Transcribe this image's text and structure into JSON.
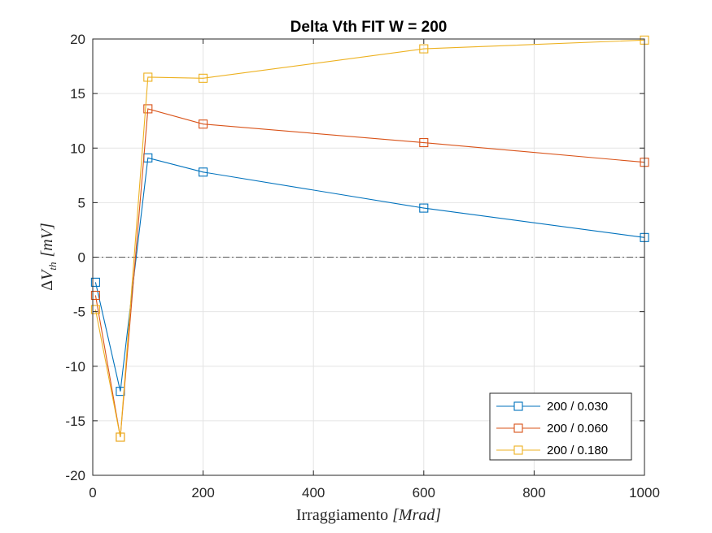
{
  "chart_data": {
    "type": "line",
    "title": "Delta Vth FIT W = 200",
    "xlabel_prefix": "Irraggiamento ",
    "xlabel_math": "[Mrad]",
    "ylabel_delta": "Δ",
    "ylabel_v": "V",
    "ylabel_sub": "th",
    "ylabel_unit": "[mV]",
    "xlim": [
      0,
      1000
    ],
    "ylim": [
      -20,
      20
    ],
    "xticks": [
      0,
      200,
      400,
      600,
      800,
      1000
    ],
    "yticks": [
      -20,
      -15,
      -10,
      -5,
      0,
      5,
      10,
      15,
      20
    ],
    "xtick_labels": [
      "0",
      "200",
      "400",
      "600",
      "800",
      "1000"
    ],
    "ytick_labels": [
      "-20",
      "-15",
      "-10",
      "-5",
      "0",
      "5",
      "10",
      "15",
      "20"
    ],
    "grid": true,
    "reference_line_y": 0,
    "legend_position": "bottom-right",
    "x": [
      5,
      50,
      100,
      200,
      600,
      1000
    ],
    "series": [
      {
        "name": "200 / 0.030",
        "color": "#0072BD",
        "values": [
          -2.3,
          -12.3,
          9.1,
          7.8,
          4.5,
          1.8
        ]
      },
      {
        "name": "200 / 0.060",
        "color": "#D95319",
        "values": [
          -3.5,
          -16.5,
          13.6,
          12.2,
          10.5,
          8.7
        ]
      },
      {
        "name": "200 / 0.180",
        "color": "#EDB120",
        "values": [
          -4.8,
          -16.5,
          16.5,
          16.4,
          19.1,
          19.9
        ]
      }
    ]
  }
}
